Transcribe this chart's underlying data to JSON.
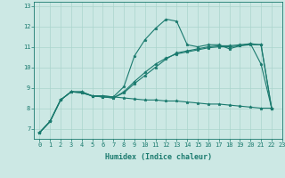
{
  "xlabel": "Humidex (Indice chaleur)",
  "bg_color": "#cce8e4",
  "line_color": "#1a7a6e",
  "grid_color": "#aad4cc",
  "xlim": [
    -0.5,
    23
  ],
  "ylim": [
    6.5,
    13.2
  ],
  "yticks": [
    7,
    8,
    9,
    10,
    11,
    12,
    13
  ],
  "xticks": [
    0,
    1,
    2,
    3,
    4,
    5,
    6,
    7,
    8,
    9,
    10,
    11,
    12,
    13,
    14,
    15,
    16,
    17,
    18,
    19,
    20,
    21,
    22,
    23
  ],
  "series1_x": [
    0,
    1,
    2,
    3,
    4,
    5,
    6,
    7,
    8,
    9,
    10,
    11,
    12,
    13,
    14,
    15,
    16,
    17,
    18,
    19,
    20,
    21,
    22
  ],
  "series1_y": [
    6.8,
    7.35,
    8.4,
    8.8,
    8.8,
    8.6,
    8.6,
    8.55,
    9.05,
    10.55,
    11.35,
    11.9,
    12.35,
    12.25,
    11.1,
    11.0,
    11.1,
    11.1,
    10.9,
    11.05,
    11.15,
    10.15,
    8.0
  ],
  "series2_x": [
    0,
    1,
    2,
    3,
    4,
    5,
    6,
    7,
    8,
    9,
    10,
    11,
    12,
    13,
    14,
    15,
    16,
    17,
    18,
    19,
    20,
    21,
    22
  ],
  "series2_y": [
    6.8,
    7.35,
    8.4,
    8.8,
    8.75,
    8.6,
    8.55,
    8.5,
    8.8,
    9.3,
    9.75,
    10.15,
    10.45,
    10.65,
    10.75,
    10.85,
    10.95,
    11.0,
    11.0,
    11.05,
    11.1,
    11.1,
    8.0
  ],
  "series3_x": [
    0,
    1,
    2,
    3,
    4,
    5,
    6,
    7,
    8,
    9,
    10,
    11,
    12,
    13,
    14,
    15,
    16,
    17,
    18,
    19,
    20,
    21,
    22
  ],
  "series3_y": [
    6.8,
    7.35,
    8.4,
    8.8,
    8.75,
    8.6,
    8.55,
    8.5,
    8.75,
    9.2,
    9.6,
    10.0,
    10.4,
    10.7,
    10.8,
    10.9,
    11.0,
    11.05,
    11.05,
    11.1,
    11.15,
    11.1,
    8.0
  ],
  "series4_x": [
    0,
    1,
    2,
    3,
    4,
    5,
    6,
    7,
    8,
    9,
    10,
    11,
    12,
    13,
    14,
    15,
    16,
    17,
    18,
    19,
    20,
    21,
    22
  ],
  "series4_y": [
    6.8,
    7.35,
    8.4,
    8.8,
    8.8,
    8.6,
    8.6,
    8.55,
    8.5,
    8.45,
    8.4,
    8.4,
    8.35,
    8.35,
    8.3,
    8.25,
    8.2,
    8.2,
    8.15,
    8.1,
    8.05,
    8.0,
    8.0
  ],
  "marker": "*",
  "markersize": 2.5,
  "linewidth": 0.8,
  "tick_fontsize": 5.0,
  "xlabel_fontsize": 6.0
}
